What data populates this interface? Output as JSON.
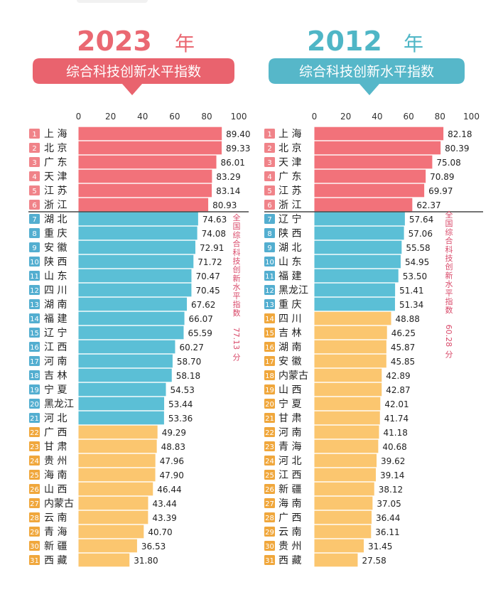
{
  "colors": {
    "top_group": "#f2727a",
    "mid_group": "#5bbfd6",
    "low_group": "#fbc66f",
    "rank_badge_top": "#f08389",
    "rank_badge_mid": "#53aed0",
    "rank_badge_low": "#f0a73c",
    "banner_left": "#e9636e",
    "banner_right": "#56b7c9",
    "title_left": "#ea6872",
    "title_right": "#4fb6c6"
  },
  "chart_data": [
    {
      "type": "bar",
      "orientation": "horizontal",
      "year_label": "2023",
      "year_suffix": "年",
      "title": "综合科技创新水平指数",
      "xlim": [
        0,
        100
      ],
      "ticks": [
        "0",
        "20",
        "40",
        "60",
        "80",
        "100"
      ],
      "tick_values": [
        0,
        20,
        40,
        60,
        80,
        100
      ],
      "national_note": "全国综合科技创新水平指数",
      "national_value": "77.13",
      "national_unit": "分",
      "groups": [
        "top",
        "top",
        "top",
        "top",
        "top",
        "top",
        "mid",
        "mid",
        "mid",
        "mid",
        "mid",
        "mid",
        "mid",
        "mid",
        "mid",
        "mid",
        "mid",
        "mid",
        "mid",
        "mid",
        "mid",
        "low",
        "low",
        "low",
        "low",
        "low",
        "low",
        "low",
        "low",
        "low",
        "low"
      ],
      "ranks": [
        "1",
        "2",
        "3",
        "4",
        "5",
        "6",
        "7",
        "8",
        "9",
        "10",
        "11",
        "12",
        "13",
        "14",
        "15",
        "16",
        "17",
        "18",
        "19",
        "20",
        "21",
        "22",
        "23",
        "24",
        "25",
        "26",
        "27",
        "28",
        "29",
        "30",
        "31"
      ],
      "categories": [
        "上 海",
        "北 京",
        "广 东",
        "天 津",
        "江 苏",
        "浙 江",
        "湖 北",
        "重 庆",
        "安 徽",
        "陕 西",
        "山 东",
        "四 川",
        "湖 南",
        "福 建",
        "辽 宁",
        "江 西",
        "河 南",
        "吉 林",
        "宁 夏",
        "黑龙江",
        "河 北",
        "广 西",
        "甘 肃",
        "贵 州",
        "海 南",
        "山 西",
        "内蒙古",
        "云 南",
        "青 海",
        "新 疆",
        "西 藏"
      ],
      "values": [
        89.4,
        89.33,
        86.01,
        83.29,
        83.14,
        80.93,
        74.63,
        74.08,
        72.91,
        71.72,
        70.47,
        70.45,
        67.62,
        66.07,
        65.59,
        60.27,
        58.7,
        58.18,
        54.53,
        53.44,
        53.36,
        49.29,
        48.83,
        47.96,
        47.9,
        46.44,
        43.44,
        43.39,
        40.7,
        36.53,
        31.8
      ],
      "value_labels": [
        "89.40",
        "89.33",
        "86.01",
        "83.29",
        "83.14",
        "80.93",
        "74.63",
        "74.08",
        "72.91",
        "71.72",
        "70.47",
        "70.45",
        "67.62",
        "66.07",
        "65.59",
        "60.27",
        "58.70",
        "58.18",
        "54.53",
        "53.44",
        "53.36",
        "49.29",
        "48.83",
        "47.96",
        "47.90",
        "46.44",
        "43.44",
        "43.39",
        "40.70",
        "36.53",
        "31.80"
      ]
    },
    {
      "type": "bar",
      "orientation": "horizontal",
      "year_label": "2012",
      "year_suffix": "年",
      "title": "综合科技创新水平指数",
      "xlim": [
        0,
        100
      ],
      "ticks": [
        "0",
        "20",
        "40",
        "60",
        "80",
        "100"
      ],
      "tick_values": [
        0,
        20,
        40,
        60,
        80,
        100
      ],
      "national_note": "全国综合科技创新水平指数",
      "national_value": "60.28",
      "national_unit": "分",
      "groups": [
        "top",
        "top",
        "top",
        "top",
        "top",
        "top",
        "mid",
        "mid",
        "mid",
        "mid",
        "mid",
        "mid",
        "mid",
        "low",
        "low",
        "low",
        "low",
        "low",
        "low",
        "low",
        "low",
        "low",
        "low",
        "low",
        "low",
        "low",
        "low",
        "low",
        "low",
        "low",
        "low"
      ],
      "ranks": [
        "1",
        "2",
        "3",
        "4",
        "5",
        "6",
        "7",
        "8",
        "9",
        "10",
        "11",
        "12",
        "13",
        "14",
        "15",
        "16",
        "17",
        "18",
        "19",
        "20",
        "21",
        "22",
        "23",
        "24",
        "25",
        "26",
        "27",
        "28",
        "29",
        "30",
        "31"
      ],
      "categories": [
        "上 海",
        "北 京",
        "天 津",
        "广 东",
        "江 苏",
        "浙 江",
        "辽 宁",
        "陕 西",
        "湖 北",
        "山 东",
        "福 建",
        "黑龙江",
        "重 庆",
        "四 川",
        "吉 林",
        "湖 南",
        "安 徽",
        "内蒙古",
        "山 西",
        "宁 夏",
        "甘 肃",
        "河 南",
        "青 海",
        "河 北",
        "江 西",
        "新 疆",
        "海 南",
        "广 西",
        "云 南",
        "贵 州",
        "西 藏"
      ],
      "values": [
        82.18,
        80.39,
        75.08,
        70.89,
        69.97,
        62.37,
        57.64,
        57.06,
        55.58,
        54.95,
        53.5,
        51.41,
        51.34,
        48.88,
        46.25,
        45.87,
        45.85,
        42.89,
        42.87,
        42.01,
        41.74,
        41.18,
        40.68,
        39.62,
        39.14,
        38.12,
        37.05,
        36.44,
        36.11,
        31.45,
        27.58
      ],
      "value_labels": [
        "82.18",
        "80.39",
        "75.08",
        "70.89",
        "69.97",
        "62.37",
        "57.64",
        "57.06",
        "55.58",
        "54.95",
        "53.50",
        "51.41",
        "51.34",
        "48.88",
        "46.25",
        "45.87",
        "45.85",
        "42.89",
        "42.87",
        "42.01",
        "41.74",
        "41.18",
        "40.68",
        "39.62",
        "39.14",
        "38.12",
        "37.05",
        "36.44",
        "36.11",
        "31.45",
        "27.58"
      ]
    }
  ]
}
